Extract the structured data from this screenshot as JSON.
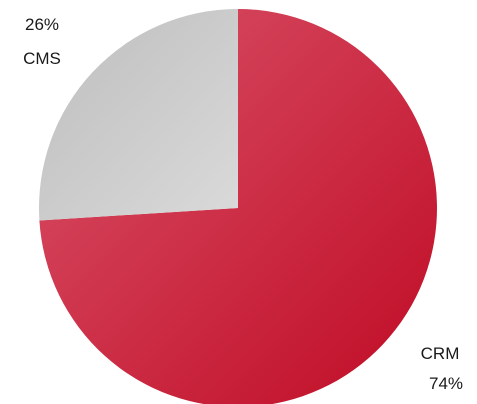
{
  "chart_data": {
    "type": "pie",
    "slices": [
      {
        "name": "CRM",
        "value": 74,
        "label": "74%",
        "color": "#c8102e"
      },
      {
        "name": "CMS",
        "value": 26,
        "label": "26%",
        "color": "#cccccc"
      }
    ],
    "title": "",
    "legend": "none",
    "units": "%"
  }
}
